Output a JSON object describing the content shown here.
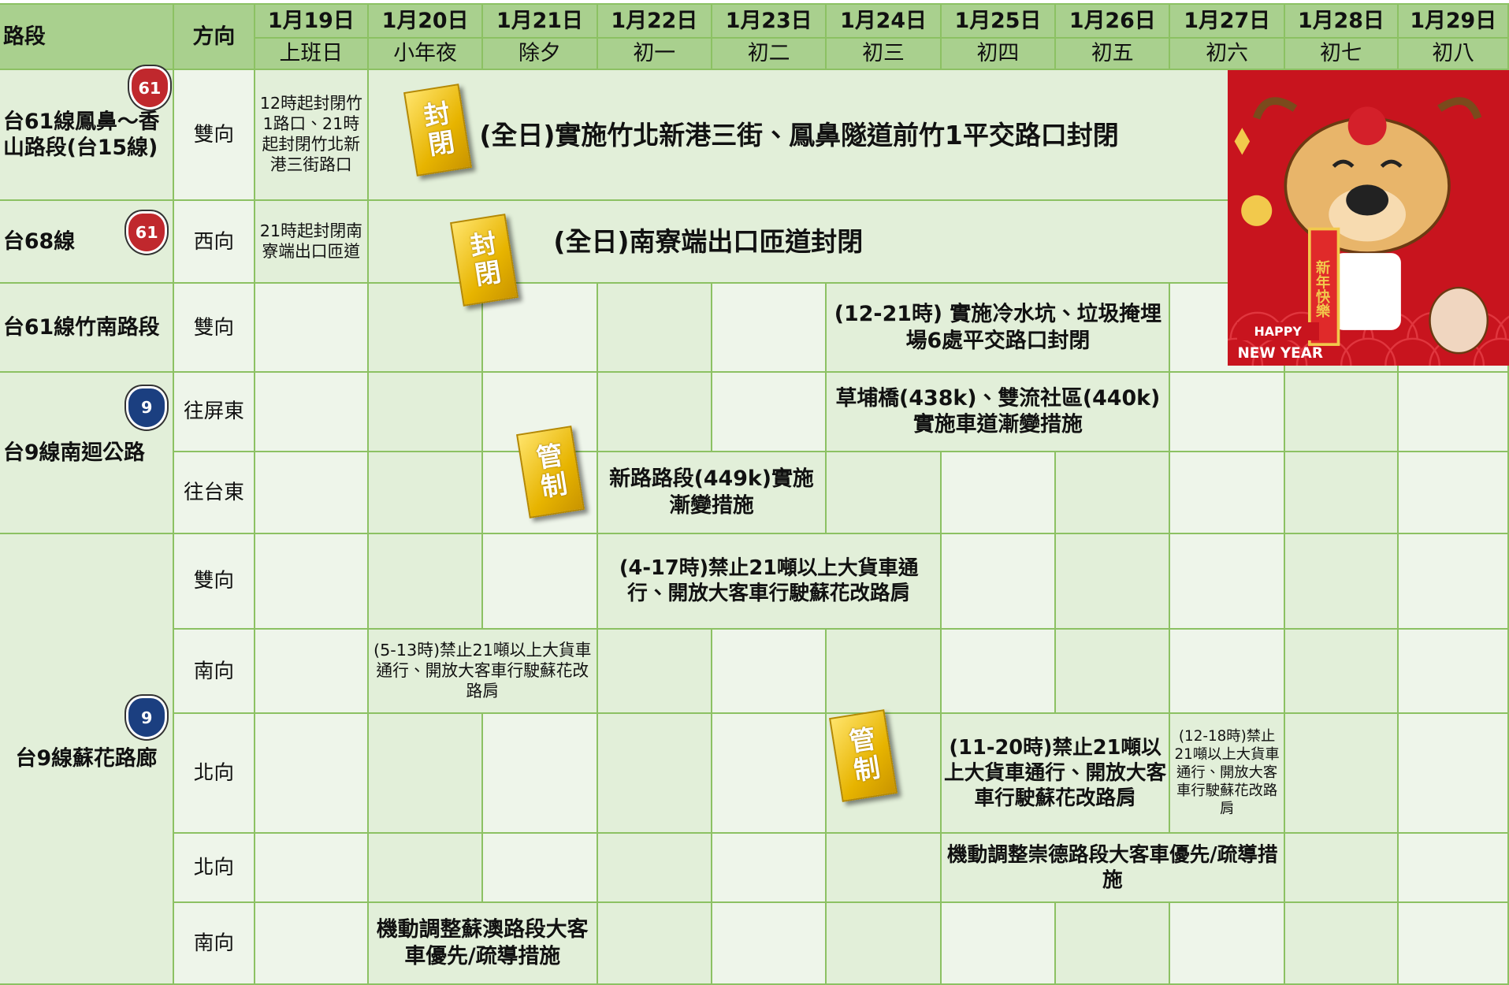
{
  "header": {
    "section": "路段",
    "direction": "方向",
    "dates": [
      "1月19日",
      "1月20日",
      "1月21日",
      "1月22日",
      "1月23日",
      "1月24日",
      "1月25日",
      "1月26日",
      "1月27日",
      "1月28日",
      "1月29日"
    ],
    "days": [
      "上班日",
      "小年夜",
      "除夕",
      "初一",
      "初二",
      "初三",
      "初四",
      "初五",
      "初六",
      "初七",
      "初八"
    ]
  },
  "sections": [
    {
      "name": "台61線鳳鼻～香山路段(台15線)",
      "badge": "61",
      "rows": [
        {
          "direction": "雙向",
          "cells": [
            {
              "text": "12時起封閉竹1路口、21時起封閉竹北新港三街路口"
            },
            {
              "text": "(全日)實施竹北新港三街、鳳鼻隧道前竹1平交路口封閉",
              "stamp": "封閉"
            }
          ]
        }
      ]
    },
    {
      "name": "台68線",
      "badge": "61",
      "rows": [
        {
          "direction": "西向",
          "cells": [
            {
              "text": "21時起封閉南寮端出口匝道"
            },
            {
              "text": "(全日)南寮端出口匝道封閉",
              "stamp": "封閉"
            }
          ]
        }
      ]
    },
    {
      "name": "台61線竹南路段",
      "rows": [
        {
          "direction": "雙向",
          "cells": [
            {
              "text": "(12-21時) 實施冷水坑、垃圾掩埋場6處平交路口封閉"
            }
          ]
        }
      ]
    },
    {
      "name": "台9線南迴公路",
      "badge": "9",
      "rows": [
        {
          "direction": "往屏東",
          "cells": [
            {
              "text": "草埔橋(438k)、雙流社區(440k)實施車道漸變措施"
            }
          ]
        },
        {
          "direction": "往台東",
          "cells": [
            {
              "text": "新路路段(449k)實施漸變措施",
              "stamp": "管制"
            }
          ]
        }
      ]
    },
    {
      "name": "台9線蘇花路廊",
      "badge": "9",
      "rows": [
        {
          "direction": "雙向",
          "cells": [
            {
              "text": "(4-17時)禁止21噸以上大貨車通行、開放大客車行駛蘇花改路肩"
            }
          ]
        },
        {
          "direction": "南向",
          "cells": [
            {
              "text": "(5-13時)禁止21噸以上大貨車通行、開放大客車行駛蘇花改路肩"
            }
          ]
        },
        {
          "direction": "北向",
          "cells": [
            {
              "text": "(11-20時)禁止21噸以上大貨車通行、開放大客車行駛蘇花改路肩",
              "stamp": "管制"
            },
            {
              "text": "(12-18時)禁止21噸以上大貨車通行、開放大客車行駛蘇花改路肩"
            }
          ]
        },
        {
          "direction": "北向",
          "cells": [
            {
              "text": "機動調整崇德路段大客車優先/疏導措施"
            }
          ]
        },
        {
          "direction": "南向",
          "cells": [
            {
              "text": "機動調整蘇澳路段大客車優先/疏導措施"
            }
          ]
        }
      ]
    }
  ],
  "greeting": {
    "card": "新年快樂",
    "banner_top": "HAPPY",
    "banner_bottom": "NEW YEAR"
  }
}
